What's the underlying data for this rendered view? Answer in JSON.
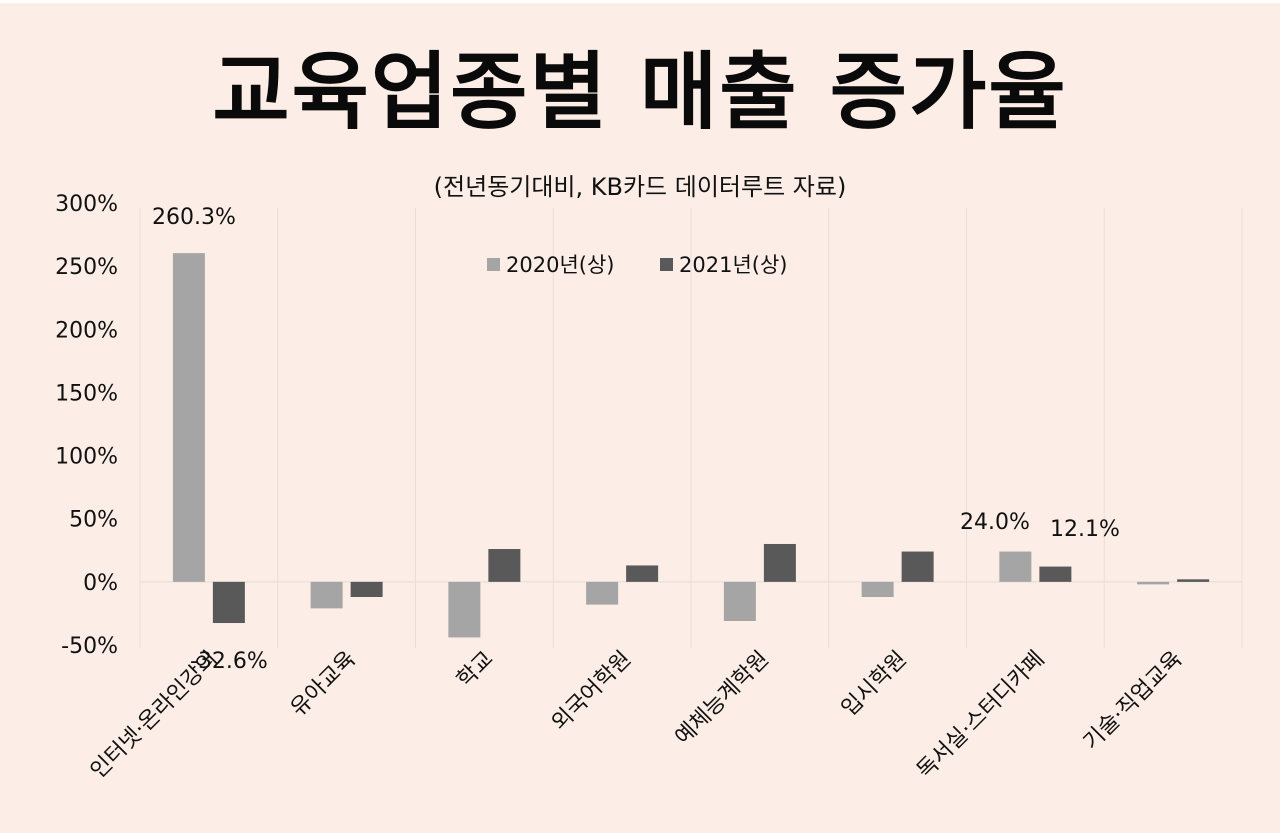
{
  "header": {
    "title": "교육업종별 매출 증가율",
    "subtitle": "(전년동기대비, KB카드 데이터루트 자료)"
  },
  "colors": {
    "background": "#FCEEE6",
    "series_2020": "#A5A5A5",
    "series_2021": "#595959",
    "gridline": "#E6DFD9"
  },
  "chart_data": {
    "type": "bar",
    "title": "교육업종별 매출 증가율",
    "subtitle": "(전년동기대비, KB카드 데이터루트 자료)",
    "xlabel": "",
    "ylabel": "",
    "ylim": [
      -50,
      300
    ],
    "yticks": [
      -50,
      0,
      50,
      100,
      150,
      200,
      250,
      300
    ],
    "ytick_labels": [
      "-50%",
      "0%",
      "50%",
      "100%",
      "150%",
      "200%",
      "250%",
      "300%"
    ],
    "grid": {
      "vertical": true,
      "horizontal_zero_line": true
    },
    "legend_position": "top-center",
    "categories": [
      "인터넷·온라인강의",
      "유아교육",
      "학교",
      "외국어학원",
      "예체능계학원",
      "입시학원",
      "독서실·스터디카페",
      "기술·직업교육"
    ],
    "series": [
      {
        "name": "2020년(상)",
        "values": [
          260.3,
          -21,
          -44,
          -18,
          -31,
          -12,
          24.0,
          -2
        ]
      },
      {
        "name": "2021년(상)",
        "values": [
          -32.6,
          -12,
          26,
          13,
          30,
          24,
          12.1,
          2
        ]
      }
    ],
    "annotations": [
      {
        "category": "인터넷·온라인강의",
        "series": "2020년(상)",
        "text": "260.3%"
      },
      {
        "category": "인터넷·온라인강의",
        "series": "2021년(상)",
        "text": "-32.6%"
      },
      {
        "category": "독서실·스터디카페",
        "series": "2020년(상)",
        "text": "24.0%"
      },
      {
        "category": "독서실·스터디카페",
        "series": "2021년(상)",
        "text": "12.1%"
      }
    ]
  }
}
